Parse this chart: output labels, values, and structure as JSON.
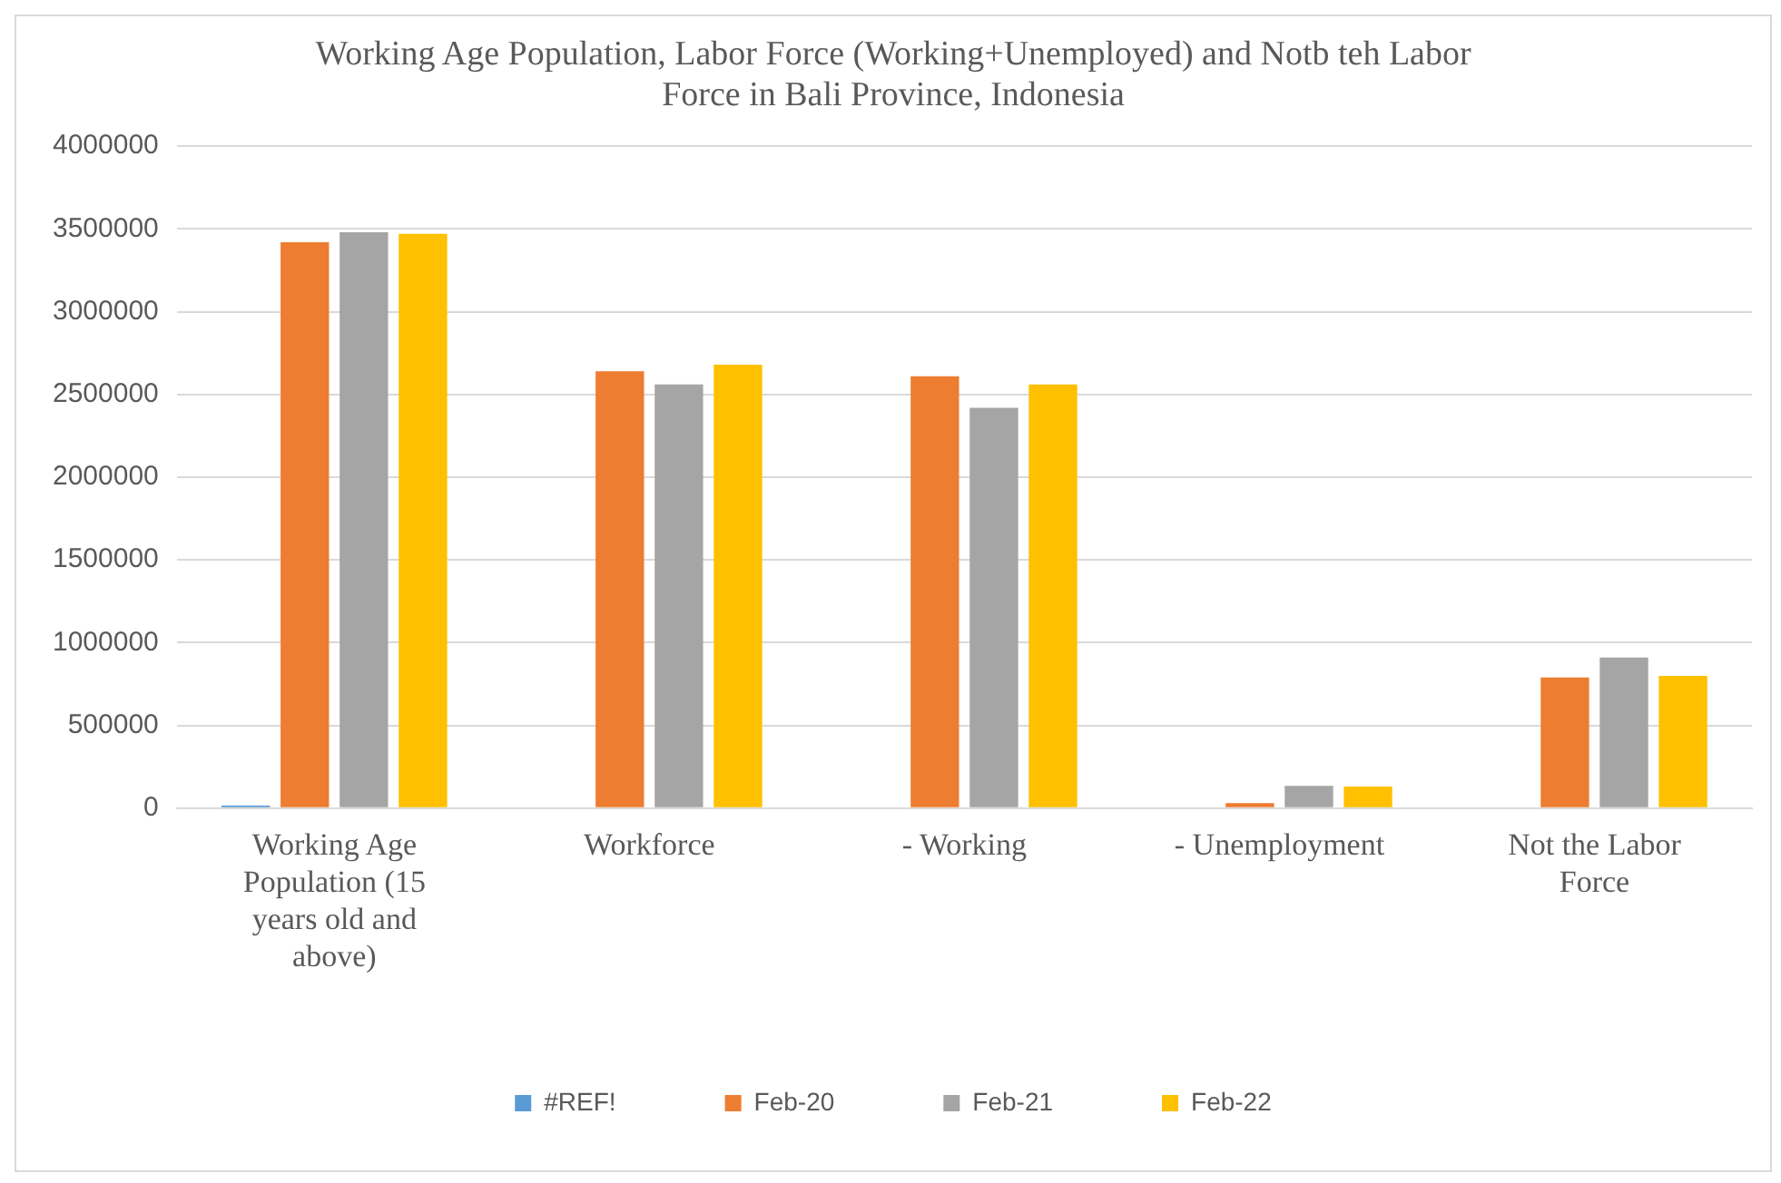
{
  "chart_data": {
    "type": "bar",
    "title": "Working Age Population, Labor Force (Working+Unemployed) and Notb teh Labor Force in Bali Province, Indonesia",
    "categories": [
      "Working Age Population (15 years old and above)",
      "Workforce",
      "- Working",
      "- Unemployment",
      "Not the Labor Force"
    ],
    "series": [
      {
        "name": "#REF!",
        "color": "#5b9bd5",
        "values": [
          15000,
          null,
          null,
          null,
          null
        ]
      },
      {
        "name": "Feb-20",
        "color": "#ed7d31",
        "values": [
          3420000,
          2640000,
          2610000,
          30000,
          790000
        ]
      },
      {
        "name": "Feb-21",
        "color": "#a5a5a5",
        "values": [
          3480000,
          2560000,
          2420000,
          135000,
          910000
        ]
      },
      {
        "name": "Feb-22",
        "color": "#ffc000",
        "values": [
          3470000,
          2680000,
          2560000,
          130000,
          800000
        ]
      }
    ],
    "ylim": [
      0,
      4000000
    ],
    "yticks": [
      0,
      500000,
      1000000,
      1500000,
      2000000,
      2500000,
      3000000,
      3500000,
      4000000
    ],
    "grid": "y",
    "legend": "bottom"
  }
}
